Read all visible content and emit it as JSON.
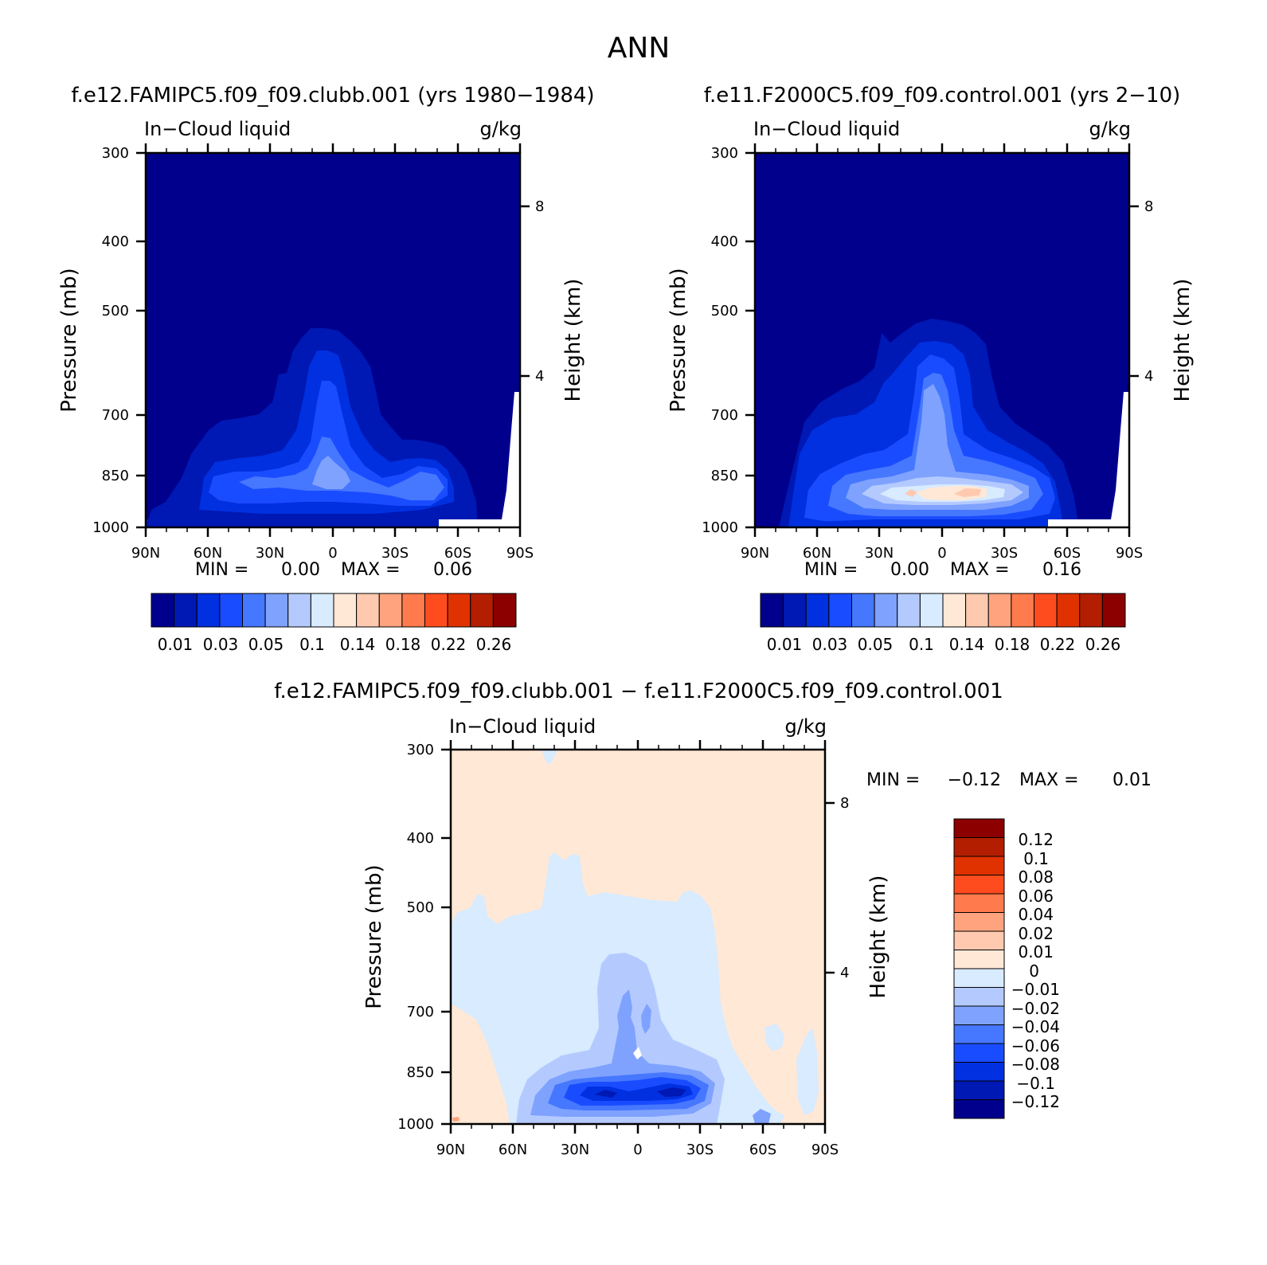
{
  "figure_title": "ANN",
  "chart_data": [
    {
      "id": "panel1",
      "type": "heatmap",
      "title": "f.e12.FAMIPC5.f09_f09.clubb.001 (yrs 1980-1984)",
      "left_label": "In-Cloud liquid",
      "right_label": "g/kg",
      "ylabel": "Pressure (mb)",
      "ylabel_right": "Height (km)",
      "x_ticks": [
        "90N",
        "60N",
        "30N",
        "0",
        "30S",
        "60S",
        "90S"
      ],
      "y_ticks": [
        "300",
        "400",
        "500",
        "700",
        "850",
        "1000"
      ],
      "y_ticks_right": [
        "8",
        "4"
      ],
      "ylim": [
        1000,
        300
      ],
      "min_label": "MIN =",
      "min_value": "0.00",
      "max_label": "MAX =",
      "max_value": "0.06",
      "colorbar_labels": [
        "0.01",
        "0.03",
        "0.05",
        "0.1",
        "0.14",
        "0.18",
        "0.22",
        "0.26"
      ]
    },
    {
      "id": "panel2",
      "type": "heatmap",
      "title": "f.e11.F2000C5.f09_f09.control.001 (yrs 2-10)",
      "left_label": "In-Cloud liquid",
      "right_label": "g/kg",
      "ylabel": "Pressure (mb)",
      "ylabel_right": "Height (km)",
      "x_ticks": [
        "90N",
        "60N",
        "30N",
        "0",
        "30S",
        "60S",
        "90S"
      ],
      "y_ticks": [
        "300",
        "400",
        "500",
        "700",
        "850",
        "1000"
      ],
      "y_ticks_right": [
        "8",
        "4"
      ],
      "ylim": [
        1000,
        300
      ],
      "min_label": "MIN =",
      "min_value": "0.00",
      "max_label": "MAX =",
      "max_value": "0.16",
      "colorbar_labels": [
        "0.01",
        "0.03",
        "0.05",
        "0.1",
        "0.14",
        "0.18",
        "0.22",
        "0.26"
      ]
    },
    {
      "id": "panel3",
      "type": "heatmap",
      "title": "f.e12.FAMIPC5.f09_f09.clubb.001 - f.e11.F2000C5.f09_f09.control.001",
      "left_label": "In-Cloud liquid",
      "right_label": "g/kg",
      "ylabel": "Pressure (mb)",
      "ylabel_right": "Height (km)",
      "x_ticks": [
        "90N",
        "60N",
        "30N",
        "0",
        "30S",
        "60S",
        "90S"
      ],
      "y_ticks": [
        "300",
        "400",
        "500",
        "700",
        "850",
        "1000"
      ],
      "y_ticks_right": [
        "8",
        "4"
      ],
      "ylim": [
        1000,
        300
      ],
      "min_label": "MIN =",
      "min_value": "-0.12",
      "max_label": "MAX =",
      "max_value": "0.01",
      "colorbar_labels": [
        "0.12",
        "0.1",
        "0.08",
        "0.06",
        "0.04",
        "0.02",
        "0.01",
        "0",
        "-0.01",
        "-0.02",
        "-0.04",
        "-0.06",
        "-0.08",
        "-0.1",
        "-0.12"
      ]
    }
  ],
  "colors": {
    "abs_scale": [
      "#00008c",
      "#0018b4",
      "#0030e0",
      "#1a4cff",
      "#4677ff",
      "#7fa2ff",
      "#b4caff",
      "#d8ebff",
      "#ffe8d6",
      "#ffc9b0",
      "#ffa37e",
      "#ff7a4c",
      "#ff4c1e",
      "#e03200",
      "#b41e00",
      "#8c0000"
    ],
    "diff_scale": [
      "#8c0000",
      "#b41e00",
      "#e03200",
      "#ff4c1e",
      "#ff7a4c",
      "#ffa37e",
      "#ffc9b0",
      "#ffe8d6",
      "#d8ebff",
      "#b4caff",
      "#7fa2ff",
      "#4677ff",
      "#1a4cff",
      "#0030e0",
      "#0018b4",
      "#00008c"
    ]
  }
}
